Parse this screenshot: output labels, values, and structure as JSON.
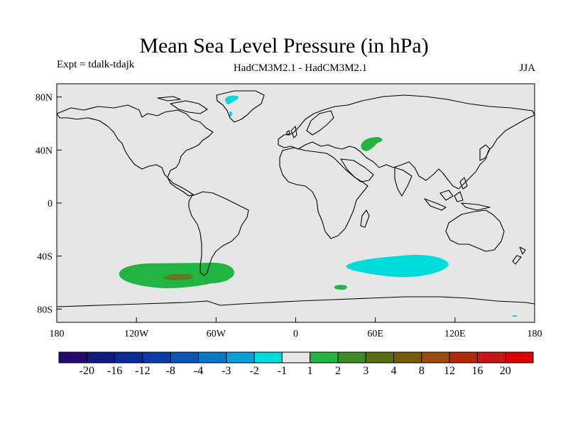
{
  "chart": {
    "title": "Mean Sea Level Pressure (in hPa)",
    "expt": "Expt = tdalk-tdajk",
    "model": "HadCM3M2.1 - HadCM3M2.1",
    "season": "JJA"
  },
  "chart_data": {
    "type": "heatmap",
    "title": "Mean Sea Level Pressure (in hPa)",
    "subtitle": "HadCM3M2.1 - HadCM3M2.1",
    "experiment": "Expt = tdalk-tdajk",
    "season": "JJA",
    "xlabel": "",
    "ylabel": "",
    "x_range": [
      -180,
      180
    ],
    "y_range": [
      -90,
      90
    ],
    "x_ticks": [
      {
        "value": -180,
        "label": "180"
      },
      {
        "value": -120,
        "label": "120W"
      },
      {
        "value": -60,
        "label": "60W"
      },
      {
        "value": 0,
        "label": "0"
      },
      {
        "value": 60,
        "label": "60E"
      },
      {
        "value": 120,
        "label": "120E"
      },
      {
        "value": 180,
        "label": "180"
      }
    ],
    "y_ticks": [
      {
        "value": 80,
        "label": "80N"
      },
      {
        "value": 40,
        "label": "40N"
      },
      {
        "value": 0,
        "label": "0"
      },
      {
        "value": -40,
        "label": "40S"
      },
      {
        "value": -80,
        "label": "80S"
      }
    ],
    "colorbar": {
      "labels": [
        "-20",
        "-16",
        "-12",
        "-8",
        "-4",
        "-3",
        "-2",
        "-1",
        "1",
        "2",
        "3",
        "4",
        "8",
        "12",
        "16",
        "20"
      ],
      "colors": [
        "#240a6e",
        "#0d1a7e",
        "#0a2a96",
        "#0a3aaa",
        "#0a55b8",
        "#0a78c8",
        "#0a9fd8",
        "#00dcdc",
        "#e6e6e6",
        "#22b440",
        "#3c8c28",
        "#5a6e14",
        "#7a5a0a",
        "#9a4a0a",
        "#b02a0a",
        "#c81414",
        "#dc0000"
      ]
    },
    "anomaly_regions": [
      {
        "name": "Southern Pacific positive",
        "category": "1 to 2",
        "lon_range": [
          -132,
          -48
        ],
        "lat_range": [
          -63,
          -45
        ],
        "color": "#22b440"
      },
      {
        "name": "Southern Pacific core",
        "category": "2 to 3",
        "lon_range": [
          -100,
          -78
        ],
        "lat_range": [
          -57,
          -54
        ],
        "color": "#5a7c23"
      },
      {
        "name": "Caspian region positive",
        "category": "1 to 2",
        "lon_range": [
          60,
          70
        ],
        "lat_range": [
          41,
          48
        ],
        "color": "#22b440"
      },
      {
        "name": "South Atlantic small positive",
        "category": "1 to 2",
        "lon_range": [
          30,
          36
        ],
        "lat_range": [
          -65,
          -62
        ],
        "color": "#22b440"
      },
      {
        "name": "Southern Indian Ocean negative",
        "category": "-2 to -1",
        "lon_range": [
          40,
          120
        ],
        "lat_range": [
          -56,
          -39
        ],
        "color": "#00dcdc"
      },
      {
        "name": "Greenland negative",
        "category": "-2 to -1",
        "lon_range": [
          -52,
          -46
        ],
        "lat_range": [
          70,
          82
        ],
        "color": "#00dcdc"
      }
    ]
  }
}
